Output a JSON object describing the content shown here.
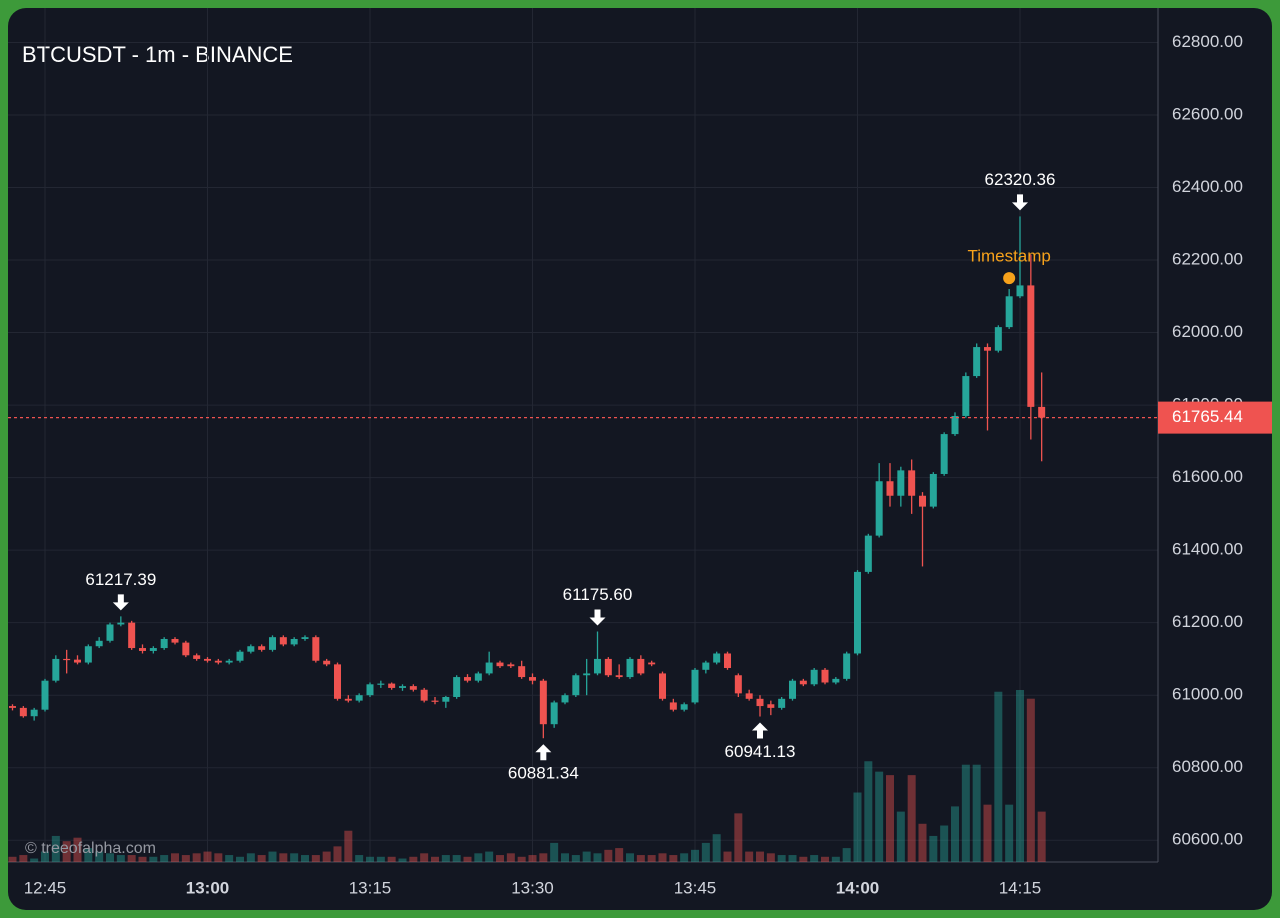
{
  "chart_data": {
    "type": "candlestick",
    "title": "BTCUSDT - 1m - BINANCE",
    "watermark": "© treeofalpha.com",
    "up_color": "#26a69a",
    "down_color": "#ef5350",
    "grid": true,
    "x": [
      "12:42",
      "12:43",
      "12:44",
      "12:45",
      "12:46",
      "12:47",
      "12:48",
      "12:49",
      "12:50",
      "12:51",
      "12:52",
      "12:53",
      "12:54",
      "12:55",
      "12:56",
      "12:57",
      "12:58",
      "12:59",
      "13:00",
      "13:01",
      "13:02",
      "13:03",
      "13:04",
      "13:05",
      "13:06",
      "13:07",
      "13:08",
      "13:09",
      "13:10",
      "13:11",
      "13:12",
      "13:13",
      "13:14",
      "13:15",
      "13:16",
      "13:17",
      "13:18",
      "13:19",
      "13:20",
      "13:21",
      "13:22",
      "13:23",
      "13:24",
      "13:25",
      "13:26",
      "13:27",
      "13:28",
      "13:29",
      "13:30",
      "13:31",
      "13:32",
      "13:33",
      "13:34",
      "13:35",
      "13:36",
      "13:37",
      "13:38",
      "13:39",
      "13:40",
      "13:41",
      "13:42",
      "13:43",
      "13:44",
      "13:45",
      "13:46",
      "13:47",
      "13:48",
      "13:49",
      "13:50",
      "13:51",
      "13:52",
      "13:53",
      "13:54",
      "13:55",
      "13:56",
      "13:57",
      "13:58",
      "13:59",
      "14:00",
      "14:01",
      "14:02",
      "14:03",
      "14:04",
      "14:05",
      "14:06",
      "14:07",
      "14:08",
      "14:09",
      "14:10",
      "14:11",
      "14:12",
      "14:13",
      "14:14",
      "14:15",
      "14:16",
      "14:17"
    ],
    "candles": [
      [
        60970,
        60975,
        60958,
        60965
      ],
      [
        60965,
        60970,
        60938,
        60942
      ],
      [
        60942,
        60965,
        60930,
        60960
      ],
      [
        60960,
        61045,
        60955,
        61040
      ],
      [
        61040,
        61110,
        61035,
        61100
      ],
      [
        61100,
        61125,
        61060,
        61098
      ],
      [
        61098,
        61110,
        61085,
        61090
      ],
      [
        61090,
        61140,
        61085,
        61135
      ],
      [
        61135,
        61160,
        61130,
        61150
      ],
      [
        61150,
        61200,
        61145,
        61195
      ],
      [
        61195,
        61217.39,
        61190,
        61200
      ],
      [
        61200,
        61205,
        61125,
        61130
      ],
      [
        61130,
        61140,
        61115,
        61122
      ],
      [
        61122,
        61135,
        61115,
        61130
      ],
      [
        61130,
        61160,
        61125,
        61155
      ],
      [
        61155,
        61160,
        61140,
        61145
      ],
      [
        61145,
        61150,
        61105,
        61110
      ],
      [
        61110,
        61115,
        61095,
        61100
      ],
      [
        61100,
        61105,
        61090,
        61095
      ],
      [
        61095,
        61100,
        61085,
        61090
      ],
      [
        61090,
        61100,
        61085,
        61095
      ],
      [
        61095,
        61125,
        61090,
        61120
      ],
      [
        61120,
        61140,
        61115,
        61135
      ],
      [
        61135,
        61140,
        61120,
        61125
      ],
      [
        61125,
        61165,
        61120,
        61160
      ],
      [
        61160,
        61165,
        61135,
        61140
      ],
      [
        61140,
        61160,
        61135,
        61155
      ],
      [
        61155,
        61165,
        61150,
        61160
      ],
      [
        61160,
        61165,
        61090,
        61095
      ],
      [
        61095,
        61100,
        61080,
        61085
      ],
      [
        61085,
        61090,
        60985,
        60990
      ],
      [
        60990,
        61000,
        60980,
        60985
      ],
      [
        60985,
        61005,
        60980,
        61000
      ],
      [
        61000,
        61035,
        60995,
        61030
      ],
      [
        61030,
        61040,
        61020,
        61032
      ],
      [
        61032,
        61035,
        61015,
        61020
      ],
      [
        61020,
        61030,
        61012,
        61025
      ],
      [
        61025,
        61030,
        61010,
        61015
      ],
      [
        61015,
        61020,
        60980,
        60985
      ],
      [
        60985,
        60995,
        60975,
        60982
      ],
      [
        60982,
        60998,
        60965,
        60995
      ],
      [
        60995,
        61055,
        60990,
        61050
      ],
      [
        61050,
        61058,
        61035,
        61040
      ],
      [
        61040,
        61065,
        61035,
        61060
      ],
      [
        61060,
        61120,
        61055,
        61090
      ],
      [
        61090,
        61095,
        61075,
        61080
      ],
      [
        61085,
        61090,
        61075,
        61080
      ],
      [
        61080,
        61095,
        61045,
        61050
      ],
      [
        61050,
        61060,
        61030,
        61040
      ],
      [
        61040,
        61045,
        60881.34,
        60920
      ],
      [
        60920,
        60985,
        60910,
        60980
      ],
      [
        60980,
        61005,
        60975,
        61000
      ],
      [
        61000,
        61060,
        60995,
        61055
      ],
      [
        61055,
        61100,
        61000,
        61060
      ],
      [
        61060,
        61175.6,
        61055,
        61100
      ],
      [
        61100,
        61105,
        61050,
        61055
      ],
      [
        61055,
        61085,
        61045,
        61050
      ],
      [
        61050,
        61105,
        61045,
        61100
      ],
      [
        61100,
        61110,
        61055,
        61060
      ],
      [
        61090,
        61095,
        61080,
        61085
      ],
      [
        61060,
        61065,
        60985,
        60990
      ],
      [
        60980,
        60990,
        60955,
        60960
      ],
      [
        60960,
        60980,
        60955,
        60975
      ],
      [
        60980,
        61075,
        60975,
        61070
      ],
      [
        61070,
        61095,
        61060,
        61090
      ],
      [
        61090,
        61120,
        61085,
        61115
      ],
      [
        61115,
        61120,
        61070,
        61075
      ],
      [
        61055,
        61060,
        60995,
        61005
      ],
      [
        61005,
        61015,
        60985,
        60990
      ],
      [
        60990,
        61000,
        60941.13,
        60970
      ],
      [
        60975,
        60985,
        60945,
        60965
      ],
      [
        60965,
        60995,
        60960,
        60990
      ],
      [
        60990,
        61045,
        60985,
        61040
      ],
      [
        61040,
        61045,
        61025,
        61030
      ],
      [
        61030,
        61075,
        61025,
        61070
      ],
      [
        61070,
        61075,
        61030,
        61035
      ],
      [
        61035,
        61050,
        61030,
        61045
      ],
      [
        61045,
        61120,
        61040,
        61115
      ],
      [
        61115,
        61345,
        61110,
        61340
      ],
      [
        61340,
        61445,
        61335,
        61440
      ],
      [
        61440,
        61640,
        61435,
        61590
      ],
      [
        61590,
        61640,
        61520,
        61550
      ],
      [
        61550,
        61630,
        61520,
        61620
      ],
      [
        61620,
        61650,
        61500,
        61550
      ],
      [
        61550,
        61560,
        61355,
        61520
      ],
      [
        61520,
        61615,
        61515,
        61610
      ],
      [
        61610,
        61725,
        61605,
        61720
      ],
      [
        61720,
        61780,
        61715,
        61770
      ],
      [
        61770,
        61890,
        61765,
        61880
      ],
      [
        61880,
        61970,
        61875,
        61960
      ],
      [
        61960,
        61970,
        61730,
        61950
      ],
      [
        61950,
        62020,
        61945,
        62015
      ],
      [
        62015,
        62120,
        62010,
        62100
      ],
      [
        62100,
        62320.36,
        62095,
        62130
      ],
      [
        62130,
        62215,
        61705,
        61795
      ],
      [
        61795,
        61890,
        61645,
        61765.44
      ]
    ],
    "volume": [
      3,
      4,
      2,
      6,
      15,
      12,
      14,
      8,
      6,
      5,
      4,
      4,
      3,
      3,
      4,
      5,
      4,
      5,
      6,
      5,
      4,
      3,
      5,
      4,
      6,
      5,
      5,
      4,
      4,
      6,
      9,
      18,
      4,
      3,
      3,
      3,
      2,
      3,
      5,
      3,
      4,
      4,
      3,
      5,
      6,
      4,
      5,
      3,
      4,
      5,
      11,
      5,
      4,
      6,
      5,
      7,
      8,
      5,
      4,
      4,
      5,
      4,
      5,
      7,
      11,
      16,
      6,
      28,
      6,
      6,
      5,
      4,
      4,
      3,
      4,
      3,
      3,
      8,
      40,
      58,
      52,
      50,
      29,
      50,
      22,
      15,
      21,
      32,
      56,
      56,
      33,
      98,
      33,
      99,
      94,
      29
    ],
    "ylim": [
      60540,
      62895
    ],
    "yticks": [
      {
        "value": 60600,
        "label": "60600.00"
      },
      {
        "value": 60800,
        "label": "60800.00"
      },
      {
        "value": 61000,
        "label": "61000.00"
      },
      {
        "value": 61200,
        "label": "61200.00"
      },
      {
        "value": 61400,
        "label": "61400.00"
      },
      {
        "value": 61600,
        "label": "61600.00"
      },
      {
        "value": 61800,
        "label": "61800.00"
      },
      {
        "value": 62000,
        "label": "62000.00"
      },
      {
        "value": 62200,
        "label": "62200.00"
      },
      {
        "value": 62400,
        "label": "62400.00"
      },
      {
        "value": 62600,
        "label": "62600.00"
      },
      {
        "value": 62800,
        "label": "62800.00"
      }
    ],
    "xticks": [
      "12:45",
      "13:00",
      "13:15",
      "13:30",
      "13:45",
      "14:00",
      "14:15"
    ],
    "markers": [
      {
        "x": "12:52",
        "kind": "high",
        "label": "61217.39"
      },
      {
        "x": "13:31",
        "kind": "low",
        "label": "60881.34"
      },
      {
        "x": "13:36",
        "kind": "high",
        "label": "61175.60"
      },
      {
        "x": "13:51",
        "kind": "low",
        "label": "60941.13"
      },
      {
        "x": "14:15",
        "kind": "high",
        "label": "62320.36"
      }
    ],
    "timestamp": {
      "label": "Timestamp",
      "x": "14:14",
      "value": 62150,
      "color": "#f7a21b"
    },
    "last_price": {
      "value": 61765.44,
      "label": "61765.44",
      "color": "#ef5350"
    }
  }
}
